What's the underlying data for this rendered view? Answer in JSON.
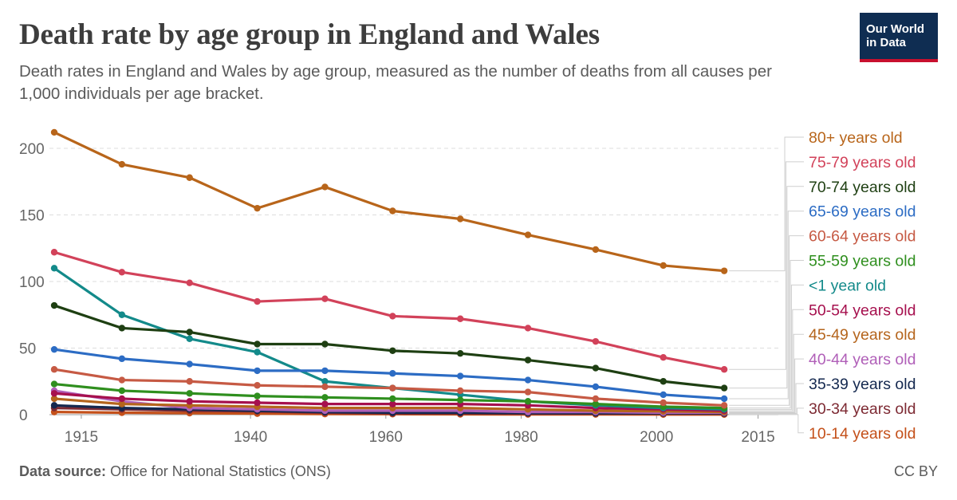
{
  "header": {
    "title": "Death rate by age group in England and Wales",
    "subtitle": "Death rates in England and Wales by age group, measured as the number of deaths from all causes per 1,000 individuals per age bracket."
  },
  "logo": {
    "line1": "Our World",
    "line2": "in Data"
  },
  "footer": {
    "source_label": "Data source:",
    "source_text": "Office for National Statistics (ONS)",
    "license": "CC BY"
  },
  "chart_data": {
    "type": "line",
    "title": "Death rate by age group in England and Wales",
    "xlabel": "",
    "ylabel": "",
    "xlim": [
      1912,
      2018
    ],
    "ylim": [
      0,
      220
    ],
    "x_ticks": [
      1915,
      1940,
      1960,
      1980,
      2000,
      2015
    ],
    "y_ticks": [
      0,
      50,
      100,
      150,
      200
    ],
    "x": [
      1911,
      1921,
      1931,
      1941,
      1951,
      1961,
      1971,
      1981,
      1991,
      2001,
      2010,
      2018
    ],
    "series": [
      {
        "name": "80+ years old",
        "color": "#b8651a",
        "values": [
          212,
          188,
          178,
          155,
          171,
          153,
          147,
          135,
          124,
          112,
          108,
          null
        ]
      },
      {
        "name": "75-79 years old",
        "color": "#d2425a",
        "values": [
          122,
          107,
          99,
          85,
          87,
          74,
          72,
          65,
          55,
          43,
          34,
          null
        ]
      },
      {
        "name": "70-74 years old",
        "color": "#1e3f12",
        "values": [
          82,
          65,
          62,
          53,
          53,
          48,
          46,
          41,
          35,
          25,
          20,
          null
        ]
      },
      {
        "name": "65-69 years old",
        "color": "#2c6cc4",
        "values": [
          49,
          42,
          38,
          33,
          33,
          31,
          29,
          26,
          21,
          15,
          12,
          null
        ]
      },
      {
        "name": "60-64 years old",
        "color": "#c65a44",
        "values": [
          34,
          26,
          25,
          22,
          21,
          20,
          18,
          17,
          12,
          9,
          7,
          null
        ]
      },
      {
        "name": "55-59 years old",
        "color": "#2f8f1e",
        "values": [
          23,
          18,
          16,
          14,
          13,
          12,
          11,
          10,
          8,
          6,
          5,
          null
        ]
      },
      {
        "name": "<1 year old",
        "color": "#138a8a",
        "values": [
          110,
          75,
          57,
          47,
          25,
          20,
          15,
          10,
          7,
          5,
          4,
          null
        ]
      },
      {
        "name": "50-54 years old",
        "color": "#a6104e",
        "values": [
          16,
          12,
          10,
          9,
          8,
          8,
          8,
          7,
          5,
          4,
          3,
          null
        ]
      },
      {
        "name": "45-49 years old",
        "color": "#b5651d",
        "values": [
          12,
          8,
          7,
          6,
          5,
          5,
          5,
          4,
          3,
          2.5,
          2,
          null
        ]
      },
      {
        "name": "40-44 years old",
        "color": "#b05fb8",
        "values": [
          18,
          10,
          5,
          4,
          3,
          3,
          3,
          2,
          2,
          1.5,
          1.5,
          null
        ]
      },
      {
        "name": "35-39 years old",
        "color": "#14284f",
        "values": [
          7,
          5,
          4,
          3,
          2,
          1.5,
          1.5,
          1.2,
          1.1,
          1,
          1,
          null
        ]
      },
      {
        "name": "30-34 years old",
        "color": "#7d2a33",
        "values": [
          5,
          4,
          3,
          2.5,
          1.5,
          1,
          1,
          0.9,
          0.9,
          0.8,
          0.7,
          null
        ]
      },
      {
        "name": "10-14 years old",
        "color": "#c4501a",
        "values": [
          2,
          1.5,
          1.2,
          0.8,
          0.5,
          0.4,
          0.3,
          0.2,
          0.2,
          0.1,
          0.1,
          null
        ]
      }
    ]
  }
}
